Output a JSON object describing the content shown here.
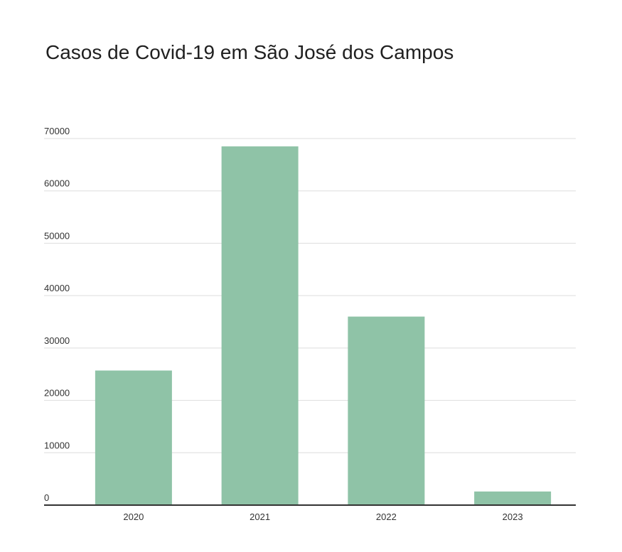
{
  "chart_data": {
    "type": "bar",
    "title": "Casos de Covid-19 em São José dos Campos",
    "categories": [
      "2020",
      "2021",
      "2022",
      "2023"
    ],
    "values": [
      25700,
      68500,
      36000,
      2600
    ],
    "ylim": [
      0,
      70000
    ],
    "yticks": [
      0,
      10000,
      20000,
      30000,
      40000,
      50000,
      60000,
      70000
    ],
    "grid": true,
    "legend": "none",
    "colors": {
      "bar": "#8fc3a7",
      "grid": "#dddddd",
      "baseline": "#333333"
    }
  }
}
